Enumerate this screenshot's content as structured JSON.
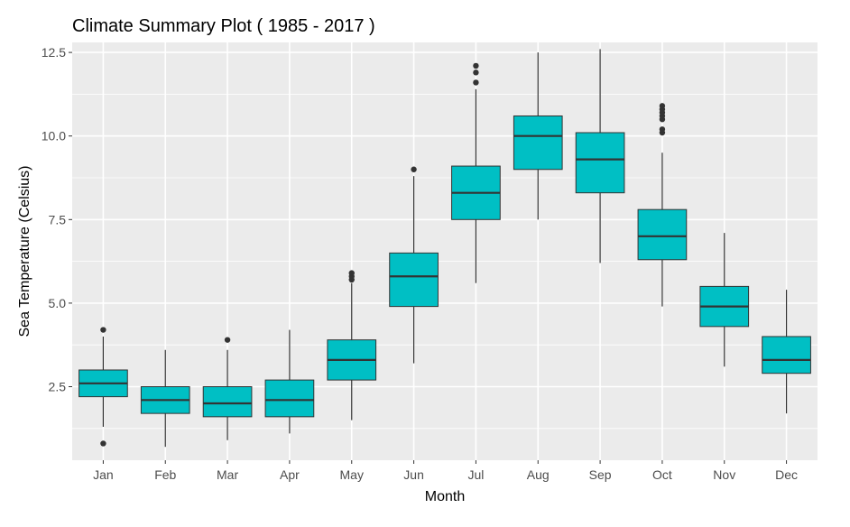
{
  "chart_data": {
    "type": "boxplot",
    "title": "Climate Summary Plot ( 1985 - 2017 )",
    "xlabel": "Month",
    "ylabel": "Sea Temperature (Celsius)",
    "categories": [
      "Jan",
      "Feb",
      "Mar",
      "Apr",
      "May",
      "Jun",
      "Jul",
      "Aug",
      "Sep",
      "Oct",
      "Nov",
      "Dec"
    ],
    "ylim": [
      0.3,
      12.8
    ],
    "yticks": [
      2.5,
      5.0,
      7.5,
      10.0,
      12.5
    ],
    "ytick_labels": [
      "2.5",
      "5.0",
      "7.5",
      "10.0",
      "12.5"
    ],
    "grid": true,
    "legend": "none",
    "colors": {
      "box_fill": "#00BFC4",
      "box_stroke": "#333333",
      "panel_background": "#EBEBEB",
      "grid": "#FFFFFF",
      "outlier": "#333333"
    },
    "boxes": [
      {
        "month": "Jan",
        "whisker_low": 1.3,
        "q1": 2.2,
        "median": 2.6,
        "q3": 3.0,
        "whisker_high": 4.0,
        "outliers": [
          4.2,
          0.8
        ]
      },
      {
        "month": "Feb",
        "whisker_low": 0.7,
        "q1": 1.7,
        "median": 2.1,
        "q3": 2.5,
        "whisker_high": 3.6,
        "outliers": []
      },
      {
        "month": "Mar",
        "whisker_low": 0.9,
        "q1": 1.6,
        "median": 2.0,
        "q3": 2.5,
        "whisker_high": 3.6,
        "outliers": [
          3.9
        ]
      },
      {
        "month": "Apr",
        "whisker_low": 1.1,
        "q1": 1.6,
        "median": 2.1,
        "q3": 2.7,
        "whisker_high": 4.2,
        "outliers": []
      },
      {
        "month": "May",
        "whisker_low": 1.5,
        "q1": 2.7,
        "median": 3.3,
        "q3": 3.9,
        "whisker_high": 5.6,
        "outliers": [
          5.7,
          5.8,
          5.9
        ]
      },
      {
        "month": "Jun",
        "whisker_low": 3.2,
        "q1": 4.9,
        "median": 5.8,
        "q3": 6.5,
        "whisker_high": 8.8,
        "outliers": [
          9.0
        ]
      },
      {
        "month": "Jul",
        "whisker_low": 5.6,
        "q1": 7.5,
        "median": 8.3,
        "q3": 9.1,
        "whisker_high": 11.4,
        "outliers": [
          11.6,
          11.9,
          12.1
        ]
      },
      {
        "month": "Aug",
        "whisker_low": 7.5,
        "q1": 9.0,
        "median": 10.0,
        "q3": 10.6,
        "whisker_high": 12.5,
        "outliers": []
      },
      {
        "month": "Sep",
        "whisker_low": 6.2,
        "q1": 8.3,
        "median": 9.3,
        "q3": 10.1,
        "whisker_high": 12.6,
        "outliers": []
      },
      {
        "month": "Oct",
        "whisker_low": 4.9,
        "q1": 6.3,
        "median": 7.0,
        "q3": 7.8,
        "whisker_high": 9.5,
        "outliers": [
          10.1,
          10.2,
          10.5,
          10.6,
          10.7,
          10.8,
          10.9
        ]
      },
      {
        "month": "Nov",
        "whisker_low": 3.1,
        "q1": 4.3,
        "median": 4.9,
        "q3": 5.5,
        "whisker_high": 7.1,
        "outliers": []
      },
      {
        "month": "Dec",
        "whisker_low": 1.7,
        "q1": 2.9,
        "median": 3.3,
        "q3": 4.0,
        "whisker_high": 5.4,
        "outliers": []
      }
    ]
  }
}
